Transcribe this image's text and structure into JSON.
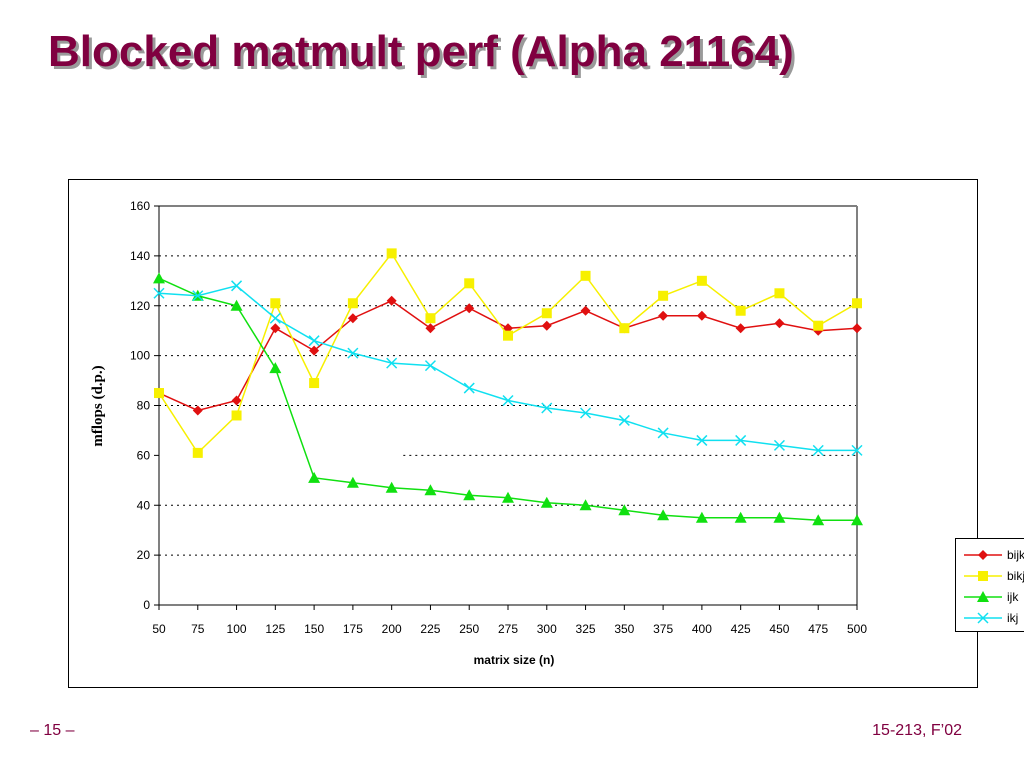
{
  "slide": {
    "title": "Blocked matmult perf (Alpha 21164)",
    "page_number": "– 15 –",
    "course": "15-213, F’02"
  },
  "chart_data": {
    "type": "line",
    "title": "",
    "xlabel": "matrix size (n)",
    "ylabel": "mflops (d.p.)",
    "categories": [
      "50",
      "75",
      "100",
      "125",
      "150",
      "175",
      "200",
      "225",
      "250",
      "275",
      "300",
      "325",
      "350",
      "375",
      "400",
      "425",
      "450",
      "475",
      "500"
    ],
    "ylim": [
      0,
      160
    ],
    "yticks": [
      0,
      20,
      40,
      60,
      80,
      100,
      120,
      140,
      160
    ],
    "grid": "dotted horizontal lines",
    "legend": "right",
    "series": [
      {
        "name": "bijk",
        "color": "#e01010",
        "marker": "diamond",
        "values": [
          85,
          78,
          82,
          111,
          102,
          115,
          122,
          111,
          119,
          111,
          112,
          118,
          111,
          116,
          116,
          111,
          113,
          110,
          111
        ]
      },
      {
        "name": "bikj",
        "color": "#f7f000",
        "marker": "square",
        "values": [
          85,
          61,
          76,
          121,
          89,
          121,
          141,
          115,
          129,
          108,
          117,
          132,
          111,
          124,
          130,
          118,
          125,
          112,
          121
        ]
      },
      {
        "name": "ijk",
        "color": "#10e010",
        "marker": "triangle",
        "values": [
          131,
          124,
          120,
          95,
          51,
          49,
          47,
          46,
          44,
          43,
          41,
          40,
          38,
          36,
          35,
          35,
          35,
          34,
          34
        ]
      },
      {
        "name": "ikj",
        "color": "#10e0f0",
        "marker": "x",
        "values": [
          125,
          124,
          128,
          115,
          106,
          101,
          97,
          96,
          87,
          82,
          79,
          77,
          74,
          69,
          66,
          66,
          64,
          62,
          62
        ]
      }
    ]
  }
}
